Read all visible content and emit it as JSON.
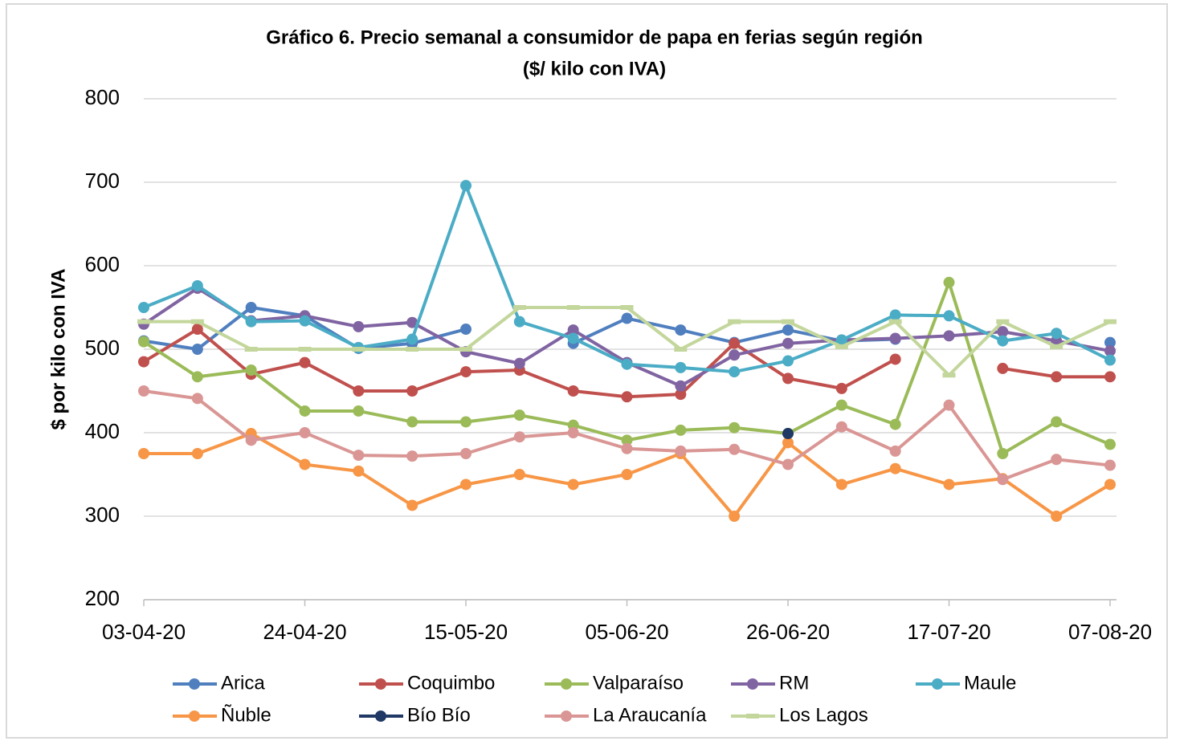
{
  "chart_data": {
    "type": "line",
    "title": "Gráfico 6. Precio semanal a consumidor de papa en ferias según región",
    "subtitle": "($/ kilo con IVA)",
    "y_label": "$ por kilo con IVA",
    "categories": [
      "03-04-20",
      null,
      null,
      "24-04-20",
      null,
      null,
      "15-05-20",
      null,
      null,
      "05-06-20",
      null,
      null,
      "26-06-20",
      null,
      null,
      "17-07-20",
      null,
      null,
      "07-08-20"
    ],
    "ylim": [
      200,
      800
    ],
    "yticks": [
      200,
      300,
      400,
      500,
      600,
      700,
      800
    ],
    "grid": true,
    "legend": "bottom",
    "series": [
      {
        "name": "Arica",
        "color": "#4f7fbf",
        "values": [
          510,
          500,
          550,
          540,
          501,
          507,
          524,
          null,
          507,
          537,
          523,
          508,
          523,
          510,
          512,
          null,
          null,
          null,
          508
        ]
      },
      {
        "name": "Coquimbo",
        "color": "#c0504d",
        "values": [
          485,
          524,
          470,
          484,
          450,
          450,
          473,
          475,
          450,
          443,
          446,
          507,
          465,
          453,
          488,
          null,
          477,
          467,
          467
        ]
      },
      {
        "name": "Valparaíso",
        "color": "#9bbb59",
        "values": [
          509,
          467,
          475,
          426,
          426,
          413,
          413,
          421,
          409,
          391,
          403,
          406,
          399,
          433,
          410,
          580,
          375,
          413,
          386
        ]
      },
      {
        "name": "RM",
        "color": "#8064a2",
        "values": [
          530,
          573,
          534,
          540,
          527,
          532,
          497,
          483,
          523,
          484,
          456,
          493,
          507,
          511,
          513,
          516,
          521,
          510,
          498
        ]
      },
      {
        "name": "Maule",
        "color": "#4bacc6",
        "values": [
          550,
          576,
          533,
          534,
          502,
          512,
          696,
          533,
          513,
          482,
          478,
          473,
          486,
          511,
          541,
          540,
          510,
          519,
          487
        ]
      },
      {
        "name": "Ñuble",
        "color": "#f79646",
        "values": [
          375,
          375,
          399,
          362,
          354,
          313,
          338,
          350,
          338,
          350,
          375,
          300,
          388,
          338,
          357,
          338,
          345,
          300,
          338
        ]
      },
      {
        "name": "Bío Bío",
        "color": "#1f3864",
        "values": [
          null,
          null,
          null,
          null,
          null,
          null,
          null,
          null,
          null,
          null,
          null,
          null,
          399,
          null,
          null,
          null,
          null,
          null,
          null
        ]
      },
      {
        "name": "La Araucanía",
        "color": "#d99694",
        "values": [
          450,
          441,
          391,
          400,
          373,
          372,
          375,
          395,
          400,
          381,
          378,
          380,
          362,
          407,
          378,
          433,
          344,
          368,
          361
        ]
      },
      {
        "name": "Los Lagos",
        "color": "#c3d69b",
        "marker": "dash",
        "values": [
          533,
          533,
          500,
          500,
          500,
          500,
          500,
          550,
          550,
          550,
          500,
          533,
          533,
          503,
          533,
          469,
          533,
          503,
          533
        ]
      }
    ]
  }
}
